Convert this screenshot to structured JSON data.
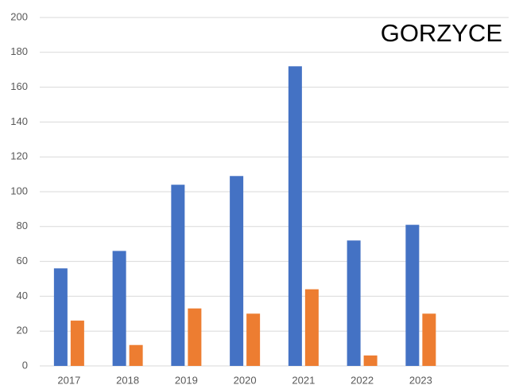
{
  "chart_data": {
    "type": "bar",
    "title": "GORZYCE",
    "categories": [
      "2017",
      "2018",
      "2019",
      "2020",
      "2021",
      "2022",
      "2023",
      null
    ],
    "series": [
      {
        "color": "#4472c4",
        "values": [
          56,
          66,
          104,
          109,
          172,
          72,
          81,
          null
        ]
      },
      {
        "color": "#ed7d31",
        "values": [
          26,
          12,
          33,
          30,
          44,
          6,
          30,
          null
        ]
      }
    ],
    "ylim": [
      0,
      200
    ],
    "yticks": [
      0,
      20,
      40,
      60,
      80,
      100,
      120,
      140,
      160,
      180,
      200
    ],
    "grid": true
  }
}
